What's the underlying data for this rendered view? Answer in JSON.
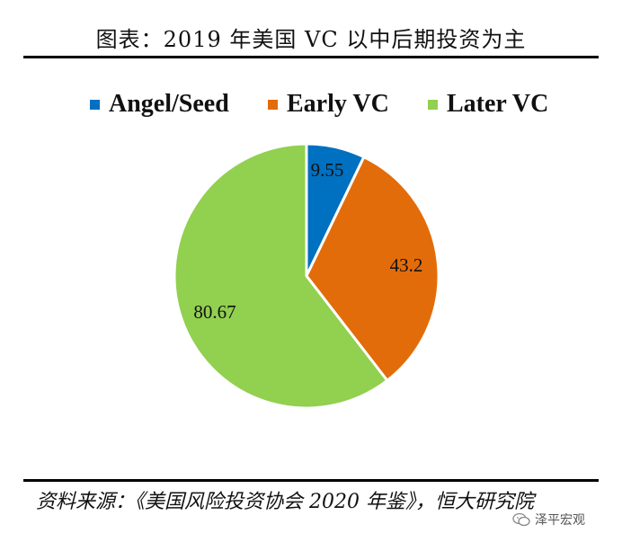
{
  "title": "图表：2019 年美国 VC 以中后期投资为主",
  "chart_data": {
    "type": "pie",
    "categories": [
      "Angel/Seed",
      "Early VC",
      "Later VC"
    ],
    "values": [
      9.55,
      43.2,
      80.67
    ],
    "labels": [
      "9.55",
      "43.2",
      "80.67"
    ],
    "colors": [
      "#0070c0",
      "#e36c0a",
      "#92d050"
    ],
    "start_angle": "12 o'clock",
    "direction": "clockwise",
    "legend_position": "top"
  },
  "source": "资料来源：《美国风险投资协会 2020 年鉴》，恒大研究院",
  "watermark": "泽平宏观"
}
